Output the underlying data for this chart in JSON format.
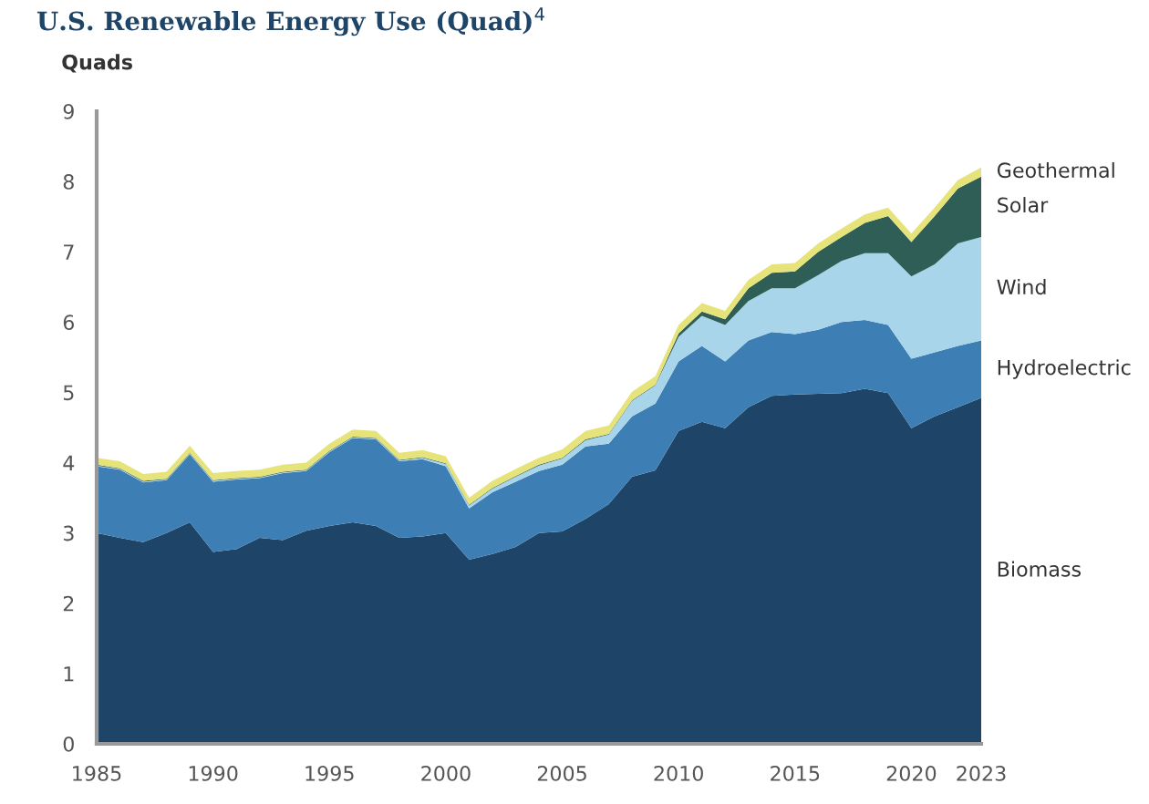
{
  "chart_data": {
    "type": "area",
    "stacked": true,
    "title": "U.S. Renewable Energy Use (Quad)$^{4}$",
    "ylabel": "Quads",
    "x": [
      1985,
      1986,
      1987,
      1988,
      1989,
      1990,
      1991,
      1992,
      1993,
      1994,
      1995,
      1996,
      1997,
      1998,
      1999,
      2000,
      2001,
      2002,
      2003,
      2004,
      2005,
      2006,
      2007,
      2008,
      2009,
      2010,
      2011,
      2012,
      2013,
      2014,
      2015,
      2016,
      2017,
      2018,
      2019,
      2020,
      2021,
      2022,
      2023
    ],
    "series": [
      {
        "name": "Biomass",
        "color": "#1e4468",
        "values": [
          3.0,
          2.93,
          2.87,
          3.0,
          3.15,
          2.73,
          2.77,
          2.93,
          2.9,
          3.03,
          3.1,
          3.15,
          3.1,
          2.93,
          2.95,
          3.0,
          2.62,
          2.7,
          2.8,
          3.0,
          3.02,
          3.2,
          3.41,
          3.8,
          3.89,
          4.45,
          4.58,
          4.49,
          4.79,
          4.95,
          4.97,
          4.98,
          4.99,
          5.05,
          4.99,
          4.49,
          4.66,
          4.79,
          4.92
        ]
      },
      {
        "name": "Hydroelectric",
        "color": "#3d7fb5",
        "values": [
          0.95,
          0.97,
          0.85,
          0.75,
          0.97,
          1.0,
          0.99,
          0.85,
          0.95,
          0.85,
          1.05,
          1.2,
          1.23,
          1.09,
          1.1,
          0.95,
          0.73,
          0.88,
          0.93,
          0.88,
          0.95,
          1.03,
          0.86,
          0.86,
          0.95,
          0.99,
          1.08,
          0.95,
          0.95,
          0.91,
          0.86,
          0.91,
          1.01,
          0.98,
          0.97,
          0.99,
          0.91,
          0.87,
          0.82
        ]
      },
      {
        "name": "Wind",
        "color": "#a8d5ea",
        "values": [
          0.01,
          0.01,
          0.01,
          0.01,
          0.01,
          0.01,
          0.01,
          0.01,
          0.01,
          0.01,
          0.01,
          0.01,
          0.01,
          0.01,
          0.02,
          0.03,
          0.04,
          0.05,
          0.07,
          0.08,
          0.09,
          0.09,
          0.13,
          0.22,
          0.26,
          0.35,
          0.43,
          0.52,
          0.56,
          0.62,
          0.65,
          0.78,
          0.87,
          0.95,
          1.02,
          1.17,
          1.25,
          1.46,
          1.47
        ]
      },
      {
        "name": "Solar",
        "color": "#2f5e57",
        "values": [
          0.01,
          0.01,
          0.01,
          0.01,
          0.01,
          0.01,
          0.01,
          0.01,
          0.01,
          0.01,
          0.01,
          0.01,
          0.01,
          0.01,
          0.01,
          0.01,
          0.01,
          0.01,
          0.01,
          0.01,
          0.01,
          0.01,
          0.01,
          0.01,
          0.01,
          0.05,
          0.06,
          0.08,
          0.18,
          0.22,
          0.24,
          0.33,
          0.34,
          0.43,
          0.53,
          0.49,
          0.69,
          0.78,
          0.86
        ]
      },
      {
        "name": "Geothermal",
        "color": "#e6e37a",
        "values": [
          0.1,
          0.1,
          0.1,
          0.1,
          0.1,
          0.1,
          0.1,
          0.1,
          0.1,
          0.1,
          0.1,
          0.1,
          0.1,
          0.1,
          0.1,
          0.1,
          0.1,
          0.1,
          0.1,
          0.1,
          0.12,
          0.12,
          0.12,
          0.12,
          0.12,
          0.12,
          0.12,
          0.12,
          0.12,
          0.12,
          0.12,
          0.12,
          0.12,
          0.12,
          0.12,
          0.12,
          0.12,
          0.12,
          0.13
        ]
      }
    ],
    "xlim": [
      1985,
      2023
    ],
    "xticks": [
      1985,
      1990,
      1995,
      2000,
      2005,
      2010,
      2015,
      2020,
      2023
    ],
    "ylim": [
      0,
      9
    ],
    "yticks": [
      0,
      1,
      2,
      3,
      4,
      5,
      6,
      7,
      8,
      9
    ],
    "grid": false,
    "legend": "right"
  }
}
